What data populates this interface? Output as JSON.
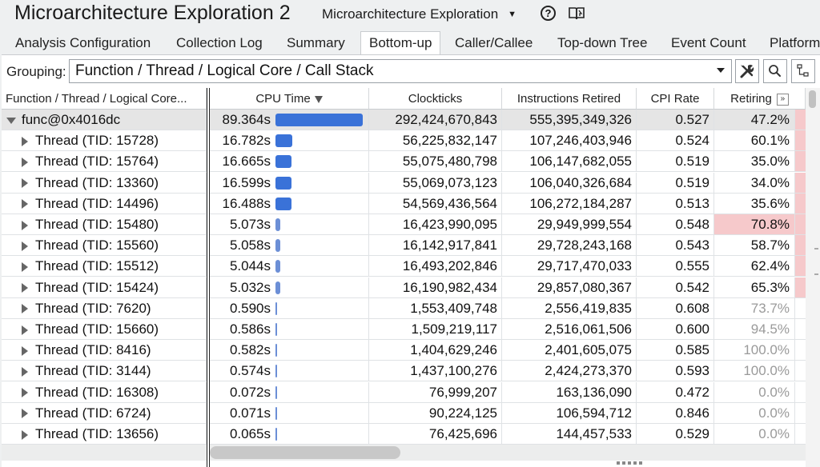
{
  "header": {
    "app_title": "Microarchitecture Exploration 2",
    "analysis_type": "Microarchitecture Exploration"
  },
  "tabs": [
    {
      "label": "Analysis Configuration"
    },
    {
      "label": "Collection Log"
    },
    {
      "label": "Summary"
    },
    {
      "label": "Bottom-up",
      "active": true
    },
    {
      "label": "Caller/Callee"
    },
    {
      "label": "Top-down Tree"
    },
    {
      "label": "Event Count"
    },
    {
      "label": "Platform"
    }
  ],
  "grouping": {
    "label": "Grouping:",
    "value": "Function / Thread / Logical Core / Call Stack"
  },
  "columns": {
    "function": "Function / Thread / Logical Core...",
    "cpu_time": "CPU Time",
    "clockticks": "Clockticks",
    "instructions_retired": "Instructions Retired",
    "cpi_rate": "CPI Rate",
    "retiring": "Retiring"
  },
  "colors": {
    "bar": "#3a72d8",
    "highlight_cell": "#f6c9cb",
    "selected_row": "#e5e5e5"
  },
  "rows": [
    {
      "name": "func@0x4016dc",
      "cpu_time": "89.364s",
      "cpu_seconds": 89.364,
      "clockticks": "292,424,670,843",
      "instructions": "555,395,349,326",
      "cpi": "0.527",
      "retiring": "47.2%",
      "selected": true,
      "expanded": true
    },
    {
      "name": "Thread (TID: 15728)",
      "cpu_time": "16.782s",
      "cpu_seconds": 16.782,
      "clockticks": "56,225,832,147",
      "instructions": "107,246,403,946",
      "cpi": "0.524",
      "retiring": "60.1%"
    },
    {
      "name": "Thread (TID: 15764)",
      "cpu_time": "16.665s",
      "cpu_seconds": 16.665,
      "clockticks": "55,075,480,798",
      "instructions": "106,147,682,055",
      "cpi": "0.519",
      "retiring": "35.0%"
    },
    {
      "name": "Thread (TID: 13360)",
      "cpu_time": "16.599s",
      "cpu_seconds": 16.599,
      "clockticks": "55,069,073,123",
      "instructions": "106,040,326,684",
      "cpi": "0.519",
      "retiring": "34.0%"
    },
    {
      "name": "Thread (TID: 14496)",
      "cpu_time": "16.488s",
      "cpu_seconds": 16.488,
      "clockticks": "54,569,436,564",
      "instructions": "106,272,184,287",
      "cpi": "0.513",
      "retiring": "35.6%"
    },
    {
      "name": "Thread (TID: 15480)",
      "cpu_time": "5.073s",
      "cpu_seconds": 5.073,
      "clockticks": "16,423,990,095",
      "instructions": "29,949,999,554",
      "cpi": "0.548",
      "retiring": "70.8%",
      "retiring_highlight": true
    },
    {
      "name": "Thread (TID: 15560)",
      "cpu_time": "5.058s",
      "cpu_seconds": 5.058,
      "clockticks": "16,142,917,841",
      "instructions": "29,728,243,168",
      "cpi": "0.543",
      "retiring": "58.7%"
    },
    {
      "name": "Thread (TID: 15512)",
      "cpu_time": "5.044s",
      "cpu_seconds": 5.044,
      "clockticks": "16,493,202,846",
      "instructions": "29,717,470,033",
      "cpi": "0.555",
      "retiring": "62.4%"
    },
    {
      "name": "Thread (TID: 15424)",
      "cpu_time": "5.032s",
      "cpu_seconds": 5.032,
      "clockticks": "16,190,982,434",
      "instructions": "29,857,080,367",
      "cpi": "0.542",
      "retiring": "65.3%"
    },
    {
      "name": "Thread (TID: 7620)",
      "cpu_time": "0.590s",
      "cpu_seconds": 0.59,
      "clockticks": "1,553,409,748",
      "instructions": "2,556,419,835",
      "cpi": "0.608",
      "retiring": "73.7%",
      "retiring_dim": true
    },
    {
      "name": "Thread (TID: 15660)",
      "cpu_time": "0.586s",
      "cpu_seconds": 0.586,
      "clockticks": "1,509,219,117",
      "instructions": "2,516,061,506",
      "cpi": "0.600",
      "retiring": "94.5%",
      "retiring_dim": true
    },
    {
      "name": "Thread (TID: 8416)",
      "cpu_time": "0.582s",
      "cpu_seconds": 0.582,
      "clockticks": "1,404,629,246",
      "instructions": "2,401,605,075",
      "cpi": "0.585",
      "retiring": "100.0%",
      "retiring_dim": true
    },
    {
      "name": "Thread (TID: 3144)",
      "cpu_time": "0.574s",
      "cpu_seconds": 0.574,
      "clockticks": "1,437,100,276",
      "instructions": "2,424,273,370",
      "cpi": "0.593",
      "retiring": "100.0%",
      "retiring_dim": true
    },
    {
      "name": "Thread (TID: 16308)",
      "cpu_time": "0.072s",
      "cpu_seconds": 0.072,
      "clockticks": "76,999,207",
      "instructions": "163,136,090",
      "cpi": "0.472",
      "retiring": "0.0%",
      "retiring_dim": true
    },
    {
      "name": "Thread (TID: 6724)",
      "cpu_time": "0.071s",
      "cpu_seconds": 0.071,
      "clockticks": "90,224,125",
      "instructions": "106,594,712",
      "cpi": "0.846",
      "retiring": "0.0%",
      "retiring_dim": true
    },
    {
      "name": "Thread (TID: 13656)",
      "cpu_time": "0.065s",
      "cpu_seconds": 0.065,
      "clockticks": "76,425,696",
      "instructions": "144,457,533",
      "cpi": "0.529",
      "retiring": "0.0%",
      "retiring_dim": true
    }
  ]
}
